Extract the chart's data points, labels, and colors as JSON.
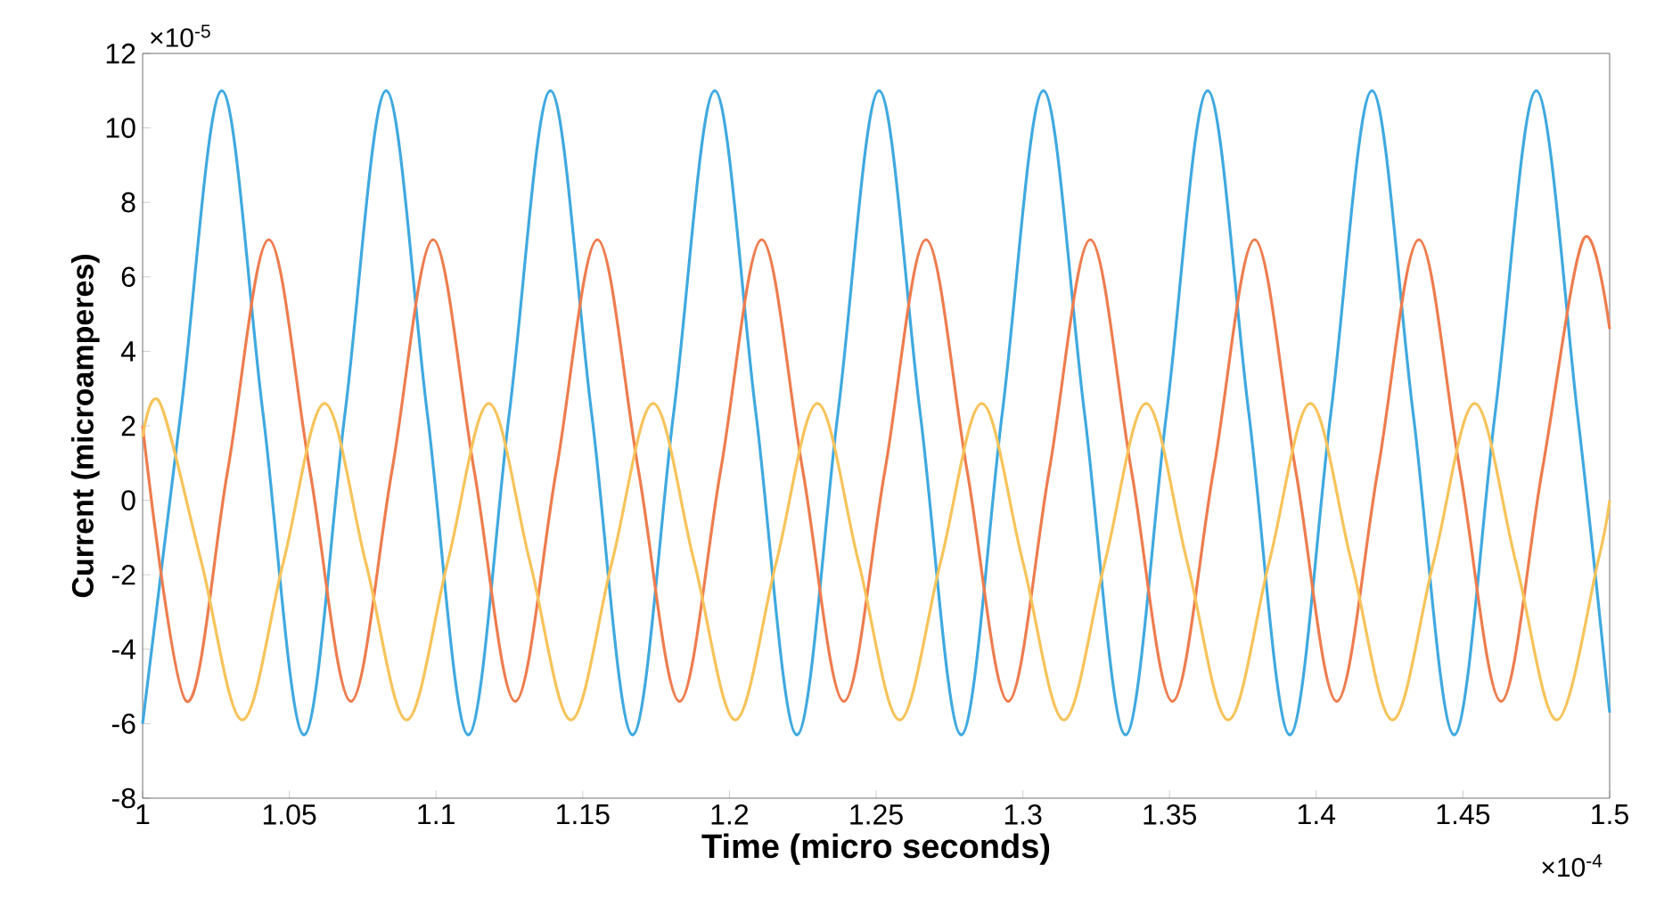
{
  "chart_data": {
    "type": "line",
    "xlabel": "Time (micro seconds)",
    "ylabel": "Current (microamperes)",
    "annotations": [
      "×10$^{-5}$",
      "×10$^{-4}$"
    ],
    "xlim": [
      1,
      1.5
    ],
    "ylim": [
      -8,
      12
    ],
    "xticks": [
      1,
      1.05,
      1.1,
      1.15,
      1.2,
      1.25,
      1.3,
      1.35,
      1.4,
      1.45,
      1.5
    ],
    "yticks": [
      -8,
      -6,
      -4,
      -2,
      0,
      2,
      4,
      6,
      8,
      10,
      12
    ],
    "series": [
      {
        "color": "#3fa9e0",
        "x": [
          1.0,
          1.013,
          1.027,
          1.041,
          1.055,
          1.069,
          1.083,
          1.097,
          1.111,
          1.125,
          1.139,
          1.153,
          1.167,
          1.181,
          1.195,
          1.209,
          1.223,
          1.237,
          1.251,
          1.265,
          1.279,
          1.293,
          1.307,
          1.321,
          1.335,
          1.349,
          1.363,
          1.377,
          1.391,
          1.405,
          1.419,
          1.433,
          1.447,
          1.461,
          1.475,
          1.489,
          1.5
        ],
        "values": [
          -6.0,
          2.35,
          11,
          2.35,
          -6.3,
          2.35,
          11,
          2.35,
          -6.3,
          2.35,
          11,
          2.35,
          -6.3,
          2.35,
          11,
          2.35,
          -6.3,
          2.35,
          11,
          2.35,
          -6.3,
          2.35,
          11,
          2.35,
          -6.3,
          2.35,
          11,
          2.35,
          -6.3,
          2.35,
          11,
          2.35,
          -6.3,
          2.35,
          11,
          2.35,
          -5.7
        ]
      },
      {
        "color": "#ee7c4e",
        "x": [
          1.0,
          1.015,
          1.029,
          1.043,
          1.057,
          1.071,
          1.085,
          1.099,
          1.113,
          1.127,
          1.141,
          1.155,
          1.169,
          1.183,
          1.197,
          1.211,
          1.225,
          1.239,
          1.253,
          1.267,
          1.281,
          1.295,
          1.309,
          1.323,
          1.337,
          1.351,
          1.365,
          1.379,
          1.393,
          1.407,
          1.421,
          1.435,
          1.449,
          1.463,
          1.477,
          1.491,
          1.5
        ],
        "values": [
          2.0,
          -5.4,
          0.8,
          7,
          0.8,
          -5.4,
          0.8,
          7,
          0.8,
          -5.4,
          0.8,
          7,
          0.8,
          -5.4,
          0.8,
          7,
          0.8,
          -5.4,
          0.8,
          7,
          0.8,
          -5.4,
          0.8,
          7,
          0.8,
          -5.4,
          0.8,
          7,
          0.8,
          -5.4,
          0.8,
          7,
          0.8,
          -5.4,
          0.8,
          7,
          4.6
        ]
      },
      {
        "color": "#f7c35a",
        "x": [
          1.0,
          1.006,
          1.02,
          1.034,
          1.048,
          1.062,
          1.076,
          1.09,
          1.104,
          1.118,
          1.132,
          1.146,
          1.16,
          1.174,
          1.188,
          1.202,
          1.216,
          1.23,
          1.244,
          1.258,
          1.272,
          1.286,
          1.3,
          1.314,
          1.328,
          1.342,
          1.356,
          1.37,
          1.384,
          1.398,
          1.412,
          1.426,
          1.44,
          1.454,
          1.468,
          1.482,
          1.496,
          1.5
        ],
        "values": [
          1.7,
          2.6,
          -1.65,
          -5.9,
          -1.65,
          2.6,
          -1.65,
          -5.9,
          -1.65,
          2.6,
          -1.65,
          -5.9,
          -1.65,
          2.6,
          -1.65,
          -5.9,
          -1.65,
          2.6,
          -1.65,
          -5.9,
          -1.65,
          2.6,
          -1.65,
          -5.9,
          -1.65,
          2.6,
          -1.65,
          -5.9,
          -1.65,
          2.6,
          -1.65,
          -5.9,
          -1.65,
          2.6,
          -1.65,
          -5.9,
          -1.65,
          0.0
        ]
      }
    ]
  }
}
